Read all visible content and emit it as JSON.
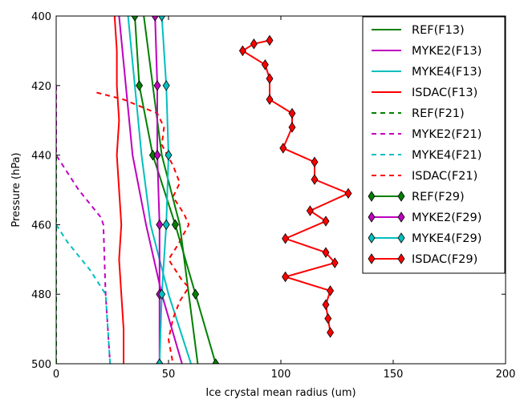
{
  "chart_data": {
    "type": "line",
    "xlabel": "Ice crystal mean radius (um)",
    "ylabel": "Pressure (hPa)",
    "xlim": [
      0,
      200
    ],
    "ylim": [
      500,
      400
    ],
    "y_inverted": true,
    "xticks": [
      "0",
      "50",
      "100",
      "150",
      "200"
    ],
    "yticks": [
      "400",
      "420",
      "440",
      "460",
      "480",
      "500"
    ],
    "xtick_values": [
      0,
      50,
      100,
      150,
      200
    ],
    "ytick_values": [
      400,
      420,
      440,
      460,
      480,
      500
    ],
    "grid": false,
    "legend_position": "top-right",
    "series": [
      {
        "name": "REF(F13)",
        "color": "#008000",
        "style": "solid",
        "marker": "none",
        "points": [
          [
            39,
            400
          ],
          [
            43,
            420
          ],
          [
            47,
            440
          ],
          [
            51,
            450
          ],
          [
            55,
            460
          ],
          [
            59,
            480
          ],
          [
            63,
            500
          ]
        ]
      },
      {
        "name": "MYKE2(F13)",
        "color": "#bf00bf",
        "style": "solid",
        "marker": "none",
        "points": [
          [
            28,
            400
          ],
          [
            31,
            420
          ],
          [
            34,
            440
          ],
          [
            37,
            450
          ],
          [
            40,
            460
          ],
          [
            47,
            480
          ],
          [
            56,
            500
          ]
        ]
      },
      {
        "name": "MYKE4(F13)",
        "color": "#00bfbf",
        "style": "solid",
        "marker": "none",
        "points": [
          [
            32,
            400
          ],
          [
            35,
            420
          ],
          [
            38,
            440
          ],
          [
            40,
            450
          ],
          [
            42,
            460
          ],
          [
            50,
            480
          ],
          [
            60,
            500
          ]
        ]
      },
      {
        "name": "ISDAC(F13)",
        "color": "#ff0000",
        "style": "solid",
        "marker": "none",
        "points": [
          [
            26,
            400
          ],
          [
            27,
            410
          ],
          [
            27,
            420
          ],
          [
            28,
            430
          ],
          [
            27,
            440
          ],
          [
            28,
            450
          ],
          [
            29,
            460
          ],
          [
            28,
            470
          ],
          [
            29,
            480
          ],
          [
            30,
            490
          ],
          [
            30,
            500
          ]
        ]
      },
      {
        "name": "REF(F21)",
        "color": "#008000",
        "style": "dashed",
        "marker": "none",
        "points": [
          [
            0,
            420
          ],
          [
            0,
            500
          ]
        ]
      },
      {
        "name": "MYKE2(F21)",
        "color": "#bf00bf",
        "style": "dashed",
        "marker": "none",
        "points": [
          [
            0,
            420
          ],
          [
            0,
            440
          ],
          [
            10,
            450
          ],
          [
            20,
            458
          ],
          [
            21,
            460
          ],
          [
            22,
            480
          ],
          [
            23,
            490
          ],
          [
            24,
            500
          ]
        ]
      },
      {
        "name": "MYKE4(F21)",
        "color": "#00bfbf",
        "style": "dashed",
        "marker": "none",
        "points": [
          [
            0,
            460
          ],
          [
            5,
            465
          ],
          [
            15,
            473
          ],
          [
            20,
            478
          ],
          [
            22,
            480
          ],
          [
            23,
            490
          ],
          [
            24,
            500
          ]
        ]
      },
      {
        "name": "ISDAC(F21)",
        "color": "#ff0000",
        "style": "dashed",
        "marker": "none",
        "points": [
          [
            18,
            422
          ],
          [
            30,
            424
          ],
          [
            45,
            428
          ],
          [
            48,
            432
          ],
          [
            47,
            437
          ],
          [
            52,
            443
          ],
          [
            55,
            448
          ],
          [
            52,
            452
          ],
          [
            57,
            457
          ],
          [
            59,
            460
          ],
          [
            54,
            466
          ],
          [
            50,
            470
          ],
          [
            56,
            476
          ],
          [
            59,
            478
          ],
          [
            55,
            482
          ],
          [
            52,
            487
          ],
          [
            51,
            490
          ],
          [
            50,
            493
          ],
          [
            52,
            500
          ]
        ]
      },
      {
        "name": "REF(F29)",
        "color": "#008000",
        "style": "solid",
        "marker": "diamond",
        "points": [
          [
            35,
            400
          ],
          [
            37,
            420
          ],
          [
            43,
            440
          ],
          [
            53,
            460
          ],
          [
            62,
            480
          ],
          [
            71,
            500
          ]
        ]
      },
      {
        "name": "MYKE2(F29)",
        "color": "#bf00bf",
        "style": "solid",
        "marker": "diamond",
        "points": [
          [
            44,
            400
          ],
          [
            45,
            420
          ],
          [
            45,
            440
          ],
          [
            46,
            460
          ],
          [
            46,
            480
          ],
          [
            46,
            500
          ]
        ]
      },
      {
        "name": "MYKE4(F29)",
        "color": "#00bfbf",
        "style": "solid",
        "marker": "diamond",
        "points": [
          [
            47,
            400
          ],
          [
            49,
            420
          ],
          [
            50,
            440
          ],
          [
            49,
            460
          ],
          [
            47,
            480
          ],
          [
            46,
            500
          ]
        ]
      },
      {
        "name": "ISDAC(F29)",
        "color": "#ff0000",
        "style": "solid",
        "marker": "diamond",
        "points": [
          [
            95,
            407
          ],
          [
            88,
            408
          ],
          [
            83,
            410
          ],
          [
            93,
            414
          ],
          [
            95,
            418
          ],
          [
            95,
            424
          ],
          [
            105,
            428
          ],
          [
            105,
            432
          ],
          [
            101,
            438
          ],
          [
            115,
            442
          ],
          [
            115,
            447
          ],
          [
            130,
            451
          ],
          [
            113,
            456
          ],
          [
            120,
            459
          ],
          [
            102,
            464
          ],
          [
            120,
            468
          ],
          [
            124,
            471
          ],
          [
            102,
            475
          ],
          [
            122,
            479
          ],
          [
            120,
            483
          ],
          [
            121,
            487
          ],
          [
            122,
            491
          ]
        ]
      }
    ]
  }
}
